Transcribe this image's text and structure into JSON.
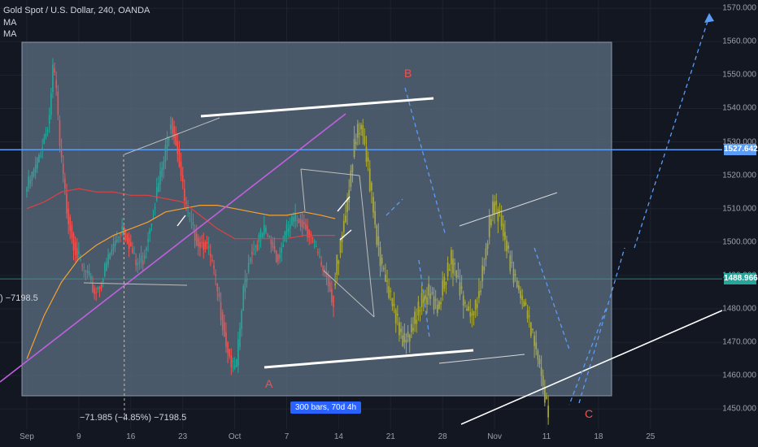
{
  "header": {
    "symbol_line": "Gold Spot / U.S. Dollar, 240, OANDA",
    "indicator_1": "MA",
    "indicator_2": "MA"
  },
  "measure": {
    "left_readout": ") −7198.5",
    "bottom_readout": "−71.985 (−4.85%) −7198.5",
    "range_badge": "300 bars, 70d 4h"
  },
  "price_tags": {
    "horizontal_line": "1527.642",
    "current_price": "1488.966"
  },
  "wave_labels": {
    "a": "A",
    "b": "B",
    "c": "C"
  },
  "colors": {
    "background": "#131722",
    "up_candle": "#26a69a",
    "down_candle": "#ef5350",
    "projection": "#a9a93a",
    "horizontal_line": "#5b9cf6",
    "price_tag": "#26a69a",
    "trendline": "#c060e0",
    "ma_fast": "#f5a030",
    "ma_slow": "#e04040",
    "wave_text": "#ef5350",
    "badge": "#2962ff"
  },
  "chart_data": {
    "type": "candlestick",
    "y_axis": {
      "ticks": [
        1450,
        1460,
        1470,
        1480,
        1490,
        1500,
        1510,
        1520,
        1530,
        1540,
        1550,
        1560,
        1570
      ],
      "tick_labels": [
        "1450.000",
        "1460.000",
        "1470.000",
        "1480.000",
        "1490.000",
        "1500.000",
        "1510.000",
        "1520.000",
        "1530.000",
        "1540.000",
        "1550.000",
        "1560.000",
        "1570.000"
      ],
      "range": [
        1443,
        1572
      ]
    },
    "x_axis": {
      "tick_labels": [
        "Sep",
        "9",
        "16",
        "23",
        "Oct",
        "7",
        "14",
        "21",
        "28",
        "Nov",
        "11",
        "18",
        "25"
      ],
      "bar_index": [
        0,
        30,
        60,
        90,
        120,
        150,
        180,
        210,
        240,
        270,
        300,
        330,
        360
      ]
    },
    "horizontal_line": 1527.642,
    "current_price": 1488.966,
    "price_path": [
      [
        0,
        1515
      ],
      [
        6,
        1522
      ],
      [
        12,
        1533
      ],
      [
        14,
        1538
      ],
      [
        16,
        1552
      ],
      [
        18,
        1545
      ],
      [
        20,
        1528
      ],
      [
        24,
        1510
      ],
      [
        28,
        1500
      ],
      [
        32,
        1493
      ],
      [
        36,
        1490
      ],
      [
        40,
        1485
      ],
      [
        44,
        1488
      ],
      [
        48,
        1495
      ],
      [
        52,
        1500
      ],
      [
        56,
        1505
      ],
      [
        60,
        1500
      ],
      [
        64,
        1493
      ],
      [
        68,
        1495
      ],
      [
        72,
        1505
      ],
      [
        76,
        1515
      ],
      [
        80,
        1524
      ],
      [
        84,
        1537
      ],
      [
        88,
        1528
      ],
      [
        92,
        1512
      ],
      [
        96,
        1505
      ],
      [
        100,
        1500
      ],
      [
        104,
        1500
      ],
      [
        108,
        1493
      ],
      [
        112,
        1482
      ],
      [
        116,
        1470
      ],
      [
        120,
        1462
      ],
      [
        122,
        1463
      ],
      [
        126,
        1485
      ],
      [
        130,
        1497
      ],
      [
        134,
        1500
      ],
      [
        138,
        1503
      ],
      [
        142,
        1500
      ],
      [
        146,
        1495
      ],
      [
        150,
        1502
      ],
      [
        154,
        1506
      ],
      [
        158,
        1507
      ],
      [
        162,
        1505
      ],
      [
        166,
        1500
      ],
      [
        170,
        1494
      ],
      [
        174,
        1490
      ],
      [
        178,
        1482
      ]
    ],
    "projection_path": [
      [
        178,
        1487
      ],
      [
        182,
        1500
      ],
      [
        186,
        1512
      ],
      [
        190,
        1530
      ],
      [
        194,
        1535
      ],
      [
        198,
        1522
      ],
      [
        202,
        1505
      ],
      [
        206,
        1492
      ],
      [
        210,
        1485
      ],
      [
        214,
        1478
      ],
      [
        218,
        1470
      ],
      [
        222,
        1473
      ],
      [
        226,
        1478
      ],
      [
        230,
        1483
      ],
      [
        234,
        1485
      ],
      [
        238,
        1480
      ],
      [
        242,
        1488
      ],
      [
        246,
        1495
      ],
      [
        250,
        1488
      ],
      [
        254,
        1480
      ],
      [
        258,
        1478
      ],
      [
        262,
        1485
      ],
      [
        266,
        1498
      ],
      [
        270,
        1512
      ],
      [
        274,
        1508
      ],
      [
        278,
        1498
      ],
      [
        282,
        1490
      ],
      [
        286,
        1484
      ],
      [
        290,
        1478
      ],
      [
        294,
        1470
      ],
      [
        298,
        1460
      ],
      [
        300,
        1453
      ],
      [
        302,
        1449
      ]
    ],
    "ma_fast": [
      [
        0,
        1465
      ],
      [
        10,
        1478
      ],
      [
        20,
        1488
      ],
      [
        30,
        1495
      ],
      [
        40,
        1499
      ],
      [
        50,
        1502
      ],
      [
        60,
        1504
      ],
      [
        70,
        1506
      ],
      [
        80,
        1509
      ],
      [
        90,
        1510
      ],
      [
        100,
        1511
      ],
      [
        110,
        1511
      ],
      [
        120,
        1510
      ],
      [
        130,
        1509
      ],
      [
        140,
        1508
      ],
      [
        150,
        1508
      ],
      [
        160,
        1509
      ],
      [
        170,
        1508
      ],
      [
        178,
        1507
      ]
    ],
    "ma_slow": [
      [
        0,
        1510
      ],
      [
        10,
        1512
      ],
      [
        20,
        1515
      ],
      [
        30,
        1516
      ],
      [
        40,
        1515
      ],
      [
        50,
        1515
      ],
      [
        60,
        1514
      ],
      [
        70,
        1514
      ],
      [
        80,
        1513
      ],
      [
        90,
        1512
      ],
      [
        100,
        1508
      ],
      [
        110,
        1504
      ],
      [
        120,
        1501
      ],
      [
        130,
        1501
      ],
      [
        140,
        1501
      ],
      [
        150,
        1501
      ],
      [
        160,
        1502
      ],
      [
        170,
        1502
      ],
      [
        178,
        1502
      ]
    ]
  }
}
